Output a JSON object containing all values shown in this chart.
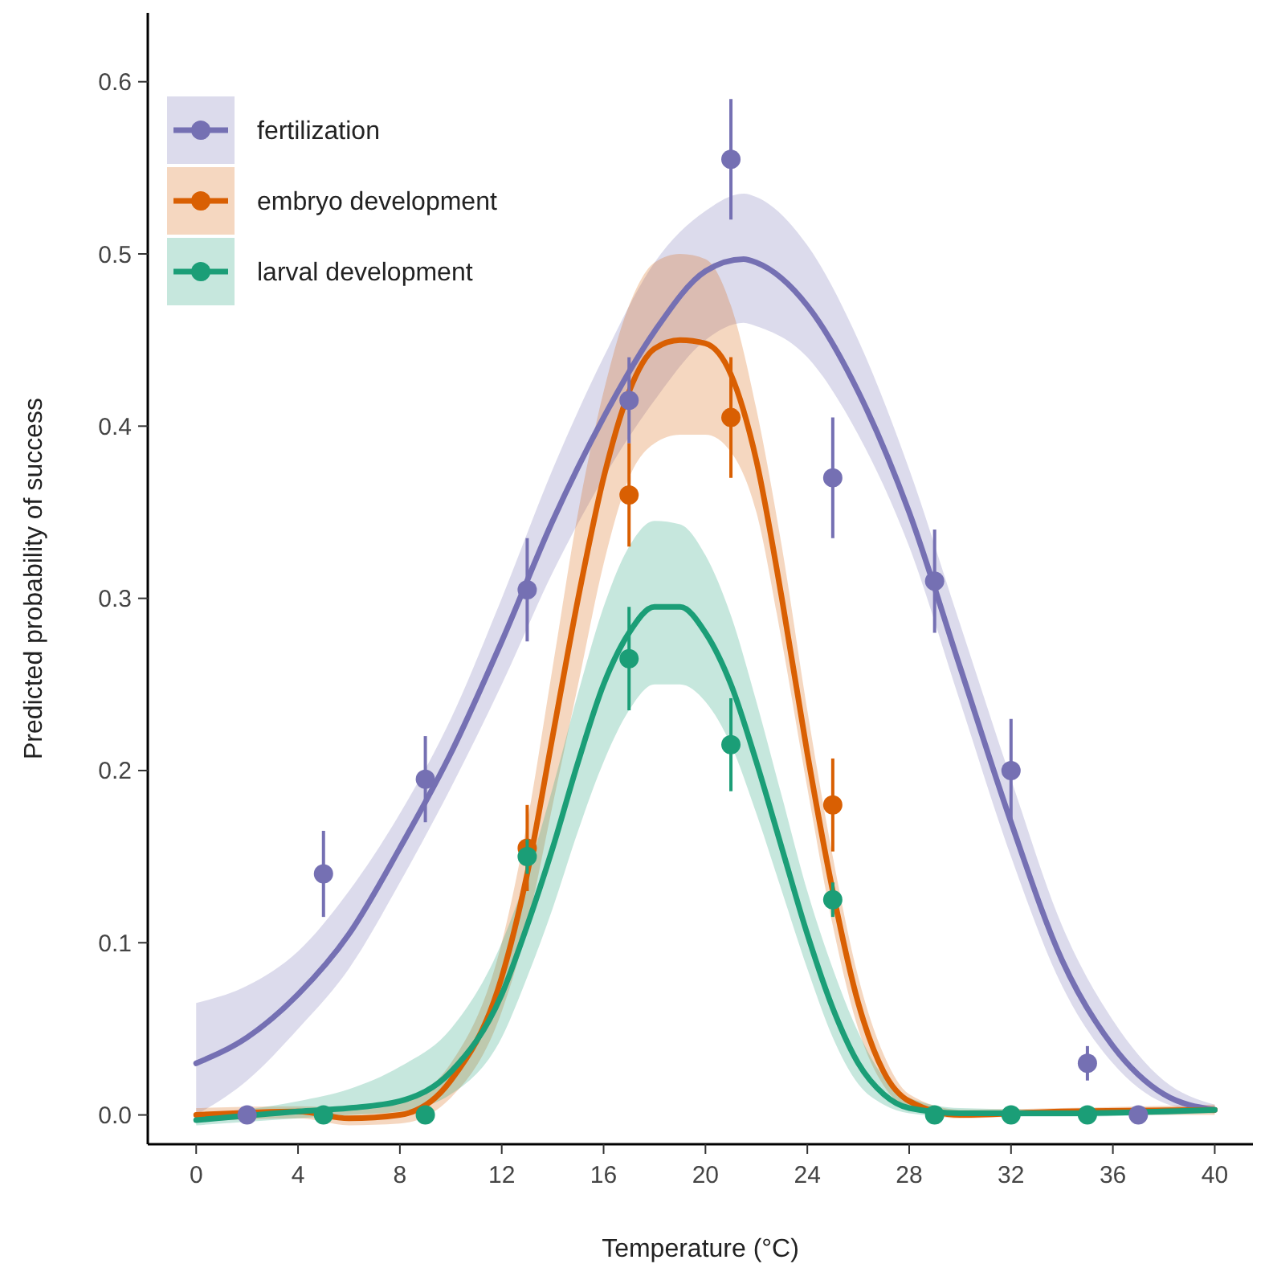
{
  "chart_data": {
    "type": "line",
    "xlabel": "Temperature (°C)",
    "ylabel": "Predicted probability of success",
    "xlim": [
      -1.9,
      41.5
    ],
    "ylim": [
      -0.017,
      0.64
    ],
    "xticks": [
      0,
      4,
      8,
      12,
      16,
      20,
      24,
      28,
      32,
      36,
      40
    ],
    "yticks": [
      {
        "value": 0,
        "label": "0.0"
      },
      0.1,
      0.2,
      0.3,
      0.4,
      0.5,
      0.6
    ],
    "grid": false,
    "legend": "top left",
    "line_style": "solid",
    "series": [
      {
        "type": "line",
        "name": "fertilization",
        "color": "#7570b3",
        "x": [
          0,
          2,
          4,
          6,
          8,
          10,
          12,
          14,
          16,
          18,
          20,
          21.5,
          22,
          24,
          26,
          28,
          30,
          32,
          34,
          36,
          38,
          40
        ],
        "values": [
          0.03,
          0.045,
          0.07,
          0.105,
          0.155,
          0.21,
          0.275,
          0.345,
          0.405,
          0.455,
          0.49,
          0.497,
          0.495,
          0.47,
          0.42,
          0.35,
          0.26,
          0.17,
          0.09,
          0.04,
          0.012,
          0.003
        ],
        "lower": [
          0.0,
          0.02,
          0.05,
          0.085,
          0.135,
          0.19,
          0.25,
          0.315,
          0.37,
          0.415,
          0.45,
          0.46,
          0.458,
          0.44,
          0.395,
          0.33,
          0.24,
          0.15,
          0.075,
          0.03,
          0.007,
          0.001
        ],
        "upper": [
          0.065,
          0.075,
          0.095,
          0.13,
          0.175,
          0.23,
          0.3,
          0.375,
          0.44,
          0.495,
          0.525,
          0.535,
          0.533,
          0.505,
          0.45,
          0.375,
          0.285,
          0.195,
          0.11,
          0.055,
          0.02,
          0.006
        ]
      },
      {
        "type": "line",
        "name": "embryo development",
        "color": "#d95f02",
        "x": [
          0,
          4,
          6,
          8,
          10,
          12,
          13,
          14,
          15,
          16,
          17,
          18,
          19,
          20,
          21,
          22,
          23,
          24,
          25,
          26,
          27,
          28,
          30,
          34,
          40
        ],
        "values": [
          0,
          0.002,
          -0.002,
          0,
          0.02,
          0.08,
          0.14,
          0.22,
          0.3,
          0.37,
          0.42,
          0.445,
          0.45,
          0.448,
          0.43,
          0.38,
          0.3,
          0.21,
          0.13,
          0.065,
          0.025,
          0.008,
          0,
          0.002,
          0.003
        ],
        "lower": [
          -0.004,
          -0.002,
          -0.006,
          -0.005,
          0.01,
          0.06,
          0.11,
          0.18,
          0.25,
          0.32,
          0.37,
          0.39,
          0.395,
          0.395,
          0.385,
          0.35,
          0.275,
          0.19,
          0.11,
          0.05,
          0.017,
          0.004,
          -0.002,
          0,
          0
        ],
        "upper": [
          0.004,
          0.005,
          0.004,
          0.008,
          0.03,
          0.1,
          0.17,
          0.26,
          0.35,
          0.42,
          0.47,
          0.495,
          0.5,
          0.497,
          0.47,
          0.41,
          0.33,
          0.235,
          0.15,
          0.08,
          0.035,
          0.012,
          0.003,
          0.004,
          0.006
        ]
      },
      {
        "type": "line",
        "name": "larval development",
        "color": "#1b9e77",
        "x": [
          0,
          4,
          6,
          8,
          10,
          12,
          13,
          14,
          15,
          16,
          17,
          18,
          19,
          20,
          21,
          22,
          23,
          24,
          25,
          26,
          27,
          28,
          30,
          34,
          40
        ],
        "values": [
          -0.003,
          0.002,
          0.004,
          0.008,
          0.025,
          0.07,
          0.11,
          0.155,
          0.205,
          0.25,
          0.28,
          0.295,
          0.295,
          0.28,
          0.25,
          0.205,
          0.155,
          0.105,
          0.062,
          0.03,
          0.012,
          0.004,
          0.001,
          0.001,
          0.003
        ],
        "lower": [
          -0.006,
          -0.002,
          0,
          0.002,
          0.012,
          0.045,
          0.08,
          0.12,
          0.165,
          0.205,
          0.235,
          0.25,
          0.25,
          0.24,
          0.215,
          0.175,
          0.13,
          0.085,
          0.045,
          0.018,
          0.006,
          0.001,
          -0.001,
          -0.001,
          0.001
        ],
        "upper": [
          0,
          0.008,
          0.015,
          0.028,
          0.05,
          0.1,
          0.14,
          0.19,
          0.245,
          0.295,
          0.33,
          0.345,
          0.343,
          0.325,
          0.29,
          0.24,
          0.185,
          0.13,
          0.085,
          0.048,
          0.022,
          0.01,
          0.004,
          0.003,
          0.005
        ]
      },
      {
        "type": "scatter",
        "marker": "circle",
        "color": "#7570b3",
        "x": [
          2,
          5,
          9,
          13,
          17,
          21,
          25,
          29,
          32,
          35,
          37
        ],
        "values": [
          0,
          0.14,
          0.195,
          0.305,
          0.415,
          0.555,
          0.37,
          0.31,
          0.2,
          0.03,
          0
        ],
        "errors": [
          null,
          0.025,
          0.025,
          0.03,
          0.025,
          0.035,
          0.035,
          0.03,
          0.03,
          0.01,
          null
        ]
      },
      {
        "type": "scatter",
        "marker": "circle",
        "color": "#d95f02",
        "x": [
          13,
          17,
          21,
          25
        ],
        "values": [
          0.155,
          0.36,
          0.405,
          0.18
        ],
        "errors": [
          0.025,
          0.03,
          0.035,
          0.027
        ]
      },
      {
        "type": "scatter",
        "marker": "circle",
        "color": "#1b9e77",
        "x": [
          5,
          9,
          13,
          17,
          21,
          25,
          29,
          32,
          35
        ],
        "values": [
          0,
          0,
          0.15,
          0.265,
          0.215,
          0.125,
          0,
          0,
          0
        ],
        "errors": [
          null,
          null,
          0.01,
          0.03,
          0.027,
          0.01,
          null,
          null,
          null
        ]
      }
    ]
  }
}
